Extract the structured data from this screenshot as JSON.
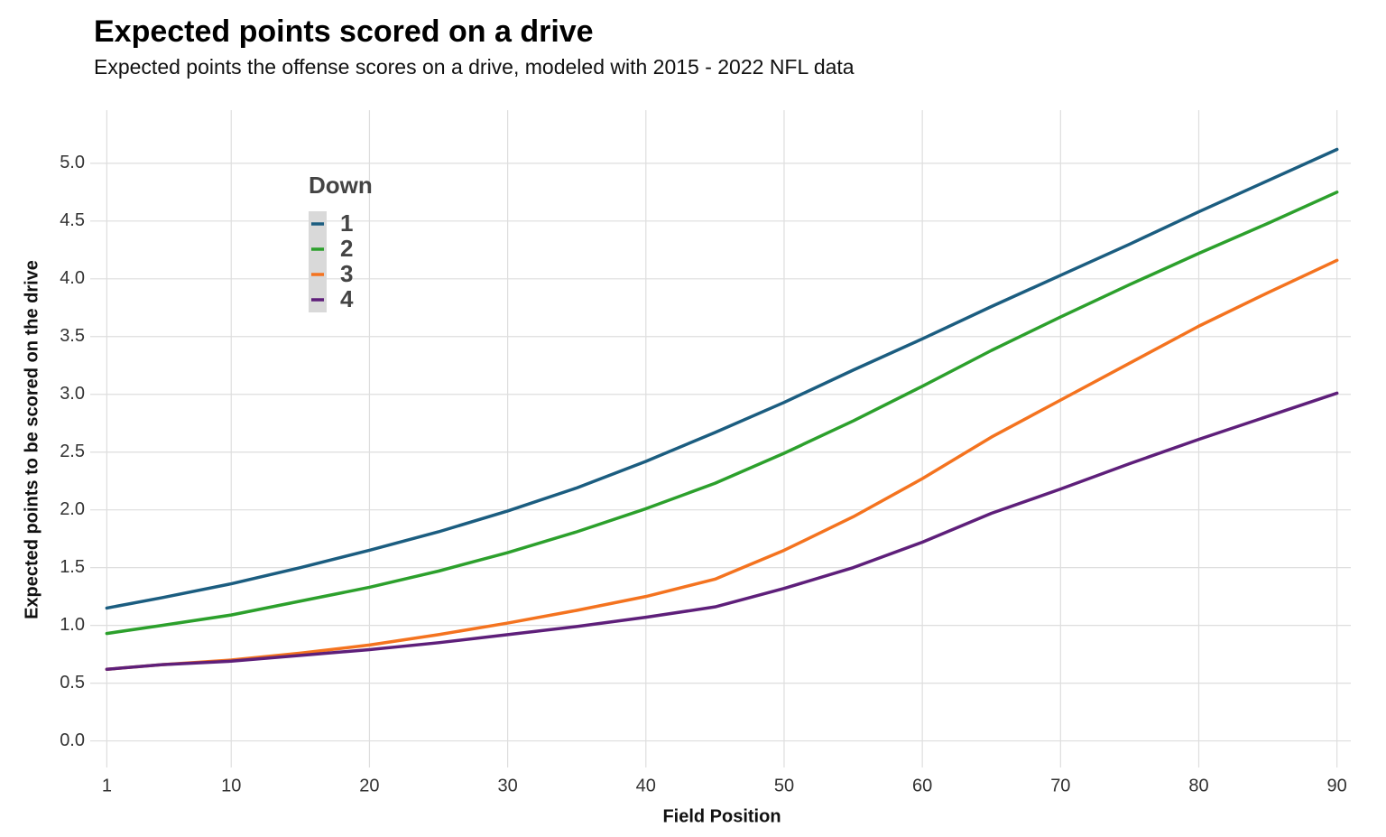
{
  "chart_data": {
    "type": "line",
    "title": "Expected points scored on a drive",
    "subtitle": "Expected points the offense scores on a drive, modeled with 2015 - 2022 NFL data",
    "x_label": "Field Position",
    "y_label": "Expected points to be scored on the drive",
    "legend_title": "Down",
    "legend_position": "top-left",
    "grid": true,
    "x": [
      1,
      5,
      10,
      15,
      20,
      25,
      30,
      35,
      40,
      45,
      50,
      55,
      60,
      65,
      70,
      75,
      80,
      85,
      90
    ],
    "series": [
      {
        "name": "1",
        "color": "#1b5d80",
        "values": [
          1.15,
          1.24,
          1.36,
          1.5,
          1.65,
          1.81,
          1.99,
          2.19,
          2.42,
          2.67,
          2.93,
          3.21,
          3.48,
          3.76,
          4.03,
          4.3,
          4.58,
          4.85,
          5.12
        ]
      },
      {
        "name": "2",
        "color": "#2ca02c",
        "values": [
          0.93,
          1.0,
          1.09,
          1.21,
          1.33,
          1.47,
          1.63,
          1.81,
          2.01,
          2.23,
          2.49,
          2.77,
          3.07,
          3.38,
          3.67,
          3.95,
          4.22,
          4.48,
          4.75
        ]
      },
      {
        "name": "3",
        "color": "#f4731f",
        "values": [
          0.62,
          0.66,
          0.7,
          0.76,
          0.83,
          0.92,
          1.02,
          1.13,
          1.25,
          1.4,
          1.65,
          1.94,
          2.27,
          2.63,
          2.95,
          3.27,
          3.59,
          3.88,
          4.16
        ]
      },
      {
        "name": "4",
        "color": "#5e1f7a",
        "values": [
          0.62,
          0.66,
          0.69,
          0.74,
          0.79,
          0.85,
          0.92,
          0.99,
          1.07,
          1.16,
          1.32,
          1.5,
          1.72,
          1.97,
          2.18,
          2.4,
          2.61,
          2.81,
          3.01
        ]
      }
    ],
    "xlim": [
      -0.2,
      91
    ],
    "xticks": [
      1,
      10,
      20,
      30,
      40,
      50,
      60,
      70,
      80,
      90
    ],
    "ylim": [
      -0.23,
      5.46
    ],
    "yticks": [
      {
        "value": 0,
        "label": "0.0"
      },
      0.5,
      {
        "value": 1,
        "label": "1.0"
      },
      1.5,
      {
        "value": 2,
        "label": "2.0"
      },
      2.5,
      {
        "value": 3,
        "label": "3.0"
      },
      3.5,
      {
        "value": 4,
        "label": "4.0"
      },
      4.5,
      {
        "value": 5,
        "label": "5.0"
      }
    ]
  }
}
